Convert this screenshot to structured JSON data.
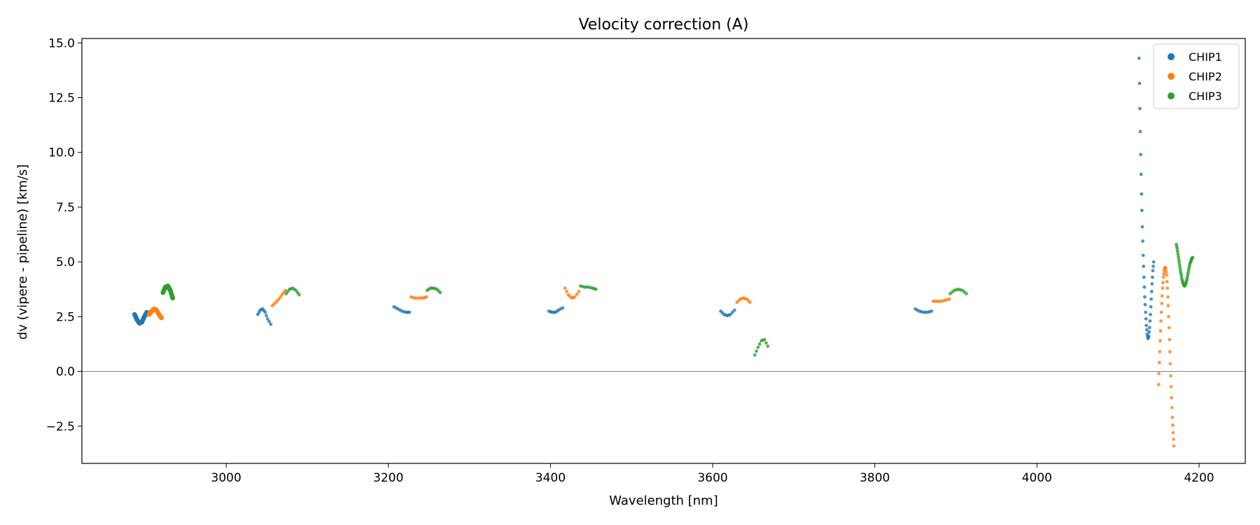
{
  "chart_data": {
    "type": "scatter",
    "title": "Velocity correction (A)",
    "xlabel": "Wavelength [nm]",
    "ylabel": "dv (vipere - pipeline) [km/s]",
    "xlim": [
      2822,
      4257
    ],
    "ylim": [
      -4.2,
      15.2
    ],
    "xticks": [
      3000,
      3200,
      3400,
      3600,
      3800,
      4000,
      4200
    ],
    "xtick_labels": [
      "3000",
      "3200",
      "3400",
      "3600",
      "3800",
      "4000",
      "4200"
    ],
    "yticks": [
      -2.5,
      0.0,
      2.5,
      5.0,
      7.5,
      10.0,
      12.5,
      15.0
    ],
    "ytick_labels": [
      "−2.5",
      "0.0",
      "2.5",
      "5.0",
      "7.5",
      "10.0",
      "12.5",
      "15.0"
    ],
    "hline": 0.0,
    "legend_position": "top-right",
    "series": [
      {
        "name": "CHIP1",
        "color": "#1f77b4",
        "segments": [
          {
            "x": [
              2887,
              2890,
              2893,
              2896,
              2899,
              2902
            ],
            "y": [
              2.6,
              2.35,
              2.2,
              2.25,
              2.5,
              2.7
            ]
          },
          {
            "x": [
              3039,
              3042,
              3045,
              3048,
              3051,
              3055
            ],
            "y": [
              2.6,
              2.8,
              2.85,
              2.7,
              2.4,
              2.15
            ]
          },
          {
            "x": [
              3207,
              3212,
              3217,
              3222,
              3226
            ],
            "y": [
              2.95,
              2.85,
              2.75,
              2.7,
              2.7
            ]
          },
          {
            "x": [
              3398,
              3402,
              3406,
              3410,
              3415
            ],
            "y": [
              2.75,
              2.7,
              2.7,
              2.8,
              2.9
            ]
          },
          {
            "x": [
              3610,
              3614,
              3618,
              3622,
              3627
            ],
            "y": [
              2.75,
              2.6,
              2.55,
              2.6,
              2.8
            ]
          },
          {
            "x": [
              3850,
              3855,
              3860,
              3865,
              3870
            ],
            "y": [
              2.85,
              2.75,
              2.7,
              2.7,
              2.75
            ]
          },
          {
            "x": [
              4126,
              4127,
              4128,
              4129,
              4130,
              4131,
              4132,
              4133,
              4134,
              4135,
              4136,
              4137,
              4138,
              4139,
              4140,
              4141,
              4142,
              4143,
              4144
            ],
            "y": [
              14.3,
              12.0,
              9.9,
              8.1,
              6.6,
              5.3,
              4.3,
              3.4,
              2.7,
              2.1,
              1.7,
              1.5,
              1.6,
              2.0,
              2.6,
              3.3,
              4.0,
              4.6,
              5.0
            ]
          }
        ]
      },
      {
        "name": "CHIP2",
        "color": "#ff7f0e",
        "segments": [
          {
            "x": [
              2905,
              2908,
              2911,
              2914,
              2917,
              2920
            ],
            "y": [
              2.6,
              2.75,
              2.85,
              2.8,
              2.6,
              2.45
            ]
          },
          {
            "x": [
              3057,
              3061,
              3065,
              3069,
              3073
            ],
            "y": [
              3.0,
              3.15,
              3.3,
              3.5,
              3.7
            ]
          },
          {
            "x": [
              3228,
              3233,
              3238,
              3243,
              3247
            ],
            "y": [
              3.4,
              3.35,
              3.35,
              3.35,
              3.4
            ]
          },
          {
            "x": [
              3418,
              3422,
              3426,
              3430,
              3435
            ],
            "y": [
              3.8,
              3.5,
              3.35,
              3.4,
              3.65
            ]
          },
          {
            "x": [
              3630,
              3634,
              3638,
              3642,
              3646
            ],
            "y": [
              3.15,
              3.3,
              3.35,
              3.3,
              3.15
            ]
          },
          {
            "x": [
              3872,
              3877,
              3882,
              3887,
              3892
            ],
            "y": [
              3.2,
              3.2,
              3.2,
              3.25,
              3.3
            ]
          },
          {
            "x": [
              4150,
              4151,
              4152,
              4153,
              4154,
              4155,
              4156,
              4157,
              4158,
              4159,
              4160,
              4161,
              4162,
              4163,
              4164,
              4165,
              4166,
              4167,
              4168,
              4169
            ],
            "y": [
              -0.6,
              0.4,
              1.4,
              2.3,
              3.1,
              3.8,
              4.3,
              4.6,
              4.75,
              4.7,
              4.4,
              3.8,
              3.0,
              2.0,
              0.9,
              -0.2,
              -1.2,
              -2.1,
              -2.8,
              -3.4
            ]
          }
        ]
      },
      {
        "name": "CHIP3",
        "color": "#2ca02c",
        "segments": [
          {
            "x": [
              2922,
              2925,
              2928,
              2931,
              2934
            ],
            "y": [
              3.6,
              3.85,
              3.9,
              3.7,
              3.35
            ]
          },
          {
            "x": [
              3074,
              3078,
              3082,
              3086,
              3090
            ],
            "y": [
              3.55,
              3.75,
              3.8,
              3.7,
              3.5
            ]
          },
          {
            "x": [
              3248,
              3252,
              3256,
              3260,
              3264
            ],
            "y": [
              3.7,
              3.8,
              3.8,
              3.75,
              3.6
            ]
          },
          {
            "x": [
              3437,
              3442,
              3447,
              3452,
              3456
            ],
            "y": [
              3.9,
              3.85,
              3.85,
              3.8,
              3.75
            ]
          },
          {
            "x": [
              3652,
              3656,
              3660,
              3664,
              3668
            ],
            "y": [
              0.75,
              1.1,
              1.4,
              1.45,
              1.15
            ]
          },
          {
            "x": [
              3893,
              3898,
              3903,
              3908,
              3913
            ],
            "y": [
              3.55,
              3.7,
              3.75,
              3.7,
              3.55
            ]
          },
          {
            "x": [
              4172,
              4173,
              4174,
              4175,
              4176,
              4177,
              4178,
              4179,
              4180,
              4181,
              4182,
              4183,
              4184,
              4185,
              4186,
              4187,
              4188,
              4189,
              4190,
              4191,
              4192
            ],
            "y": [
              5.8,
              5.6,
              5.35,
              5.1,
              4.85,
              4.6,
              4.4,
              4.2,
              4.05,
              3.95,
              3.9,
              3.95,
              4.05,
              4.2,
              4.4,
              4.6,
              4.8,
              4.95,
              5.05,
              5.15,
              5.2
            ]
          }
        ]
      }
    ]
  }
}
